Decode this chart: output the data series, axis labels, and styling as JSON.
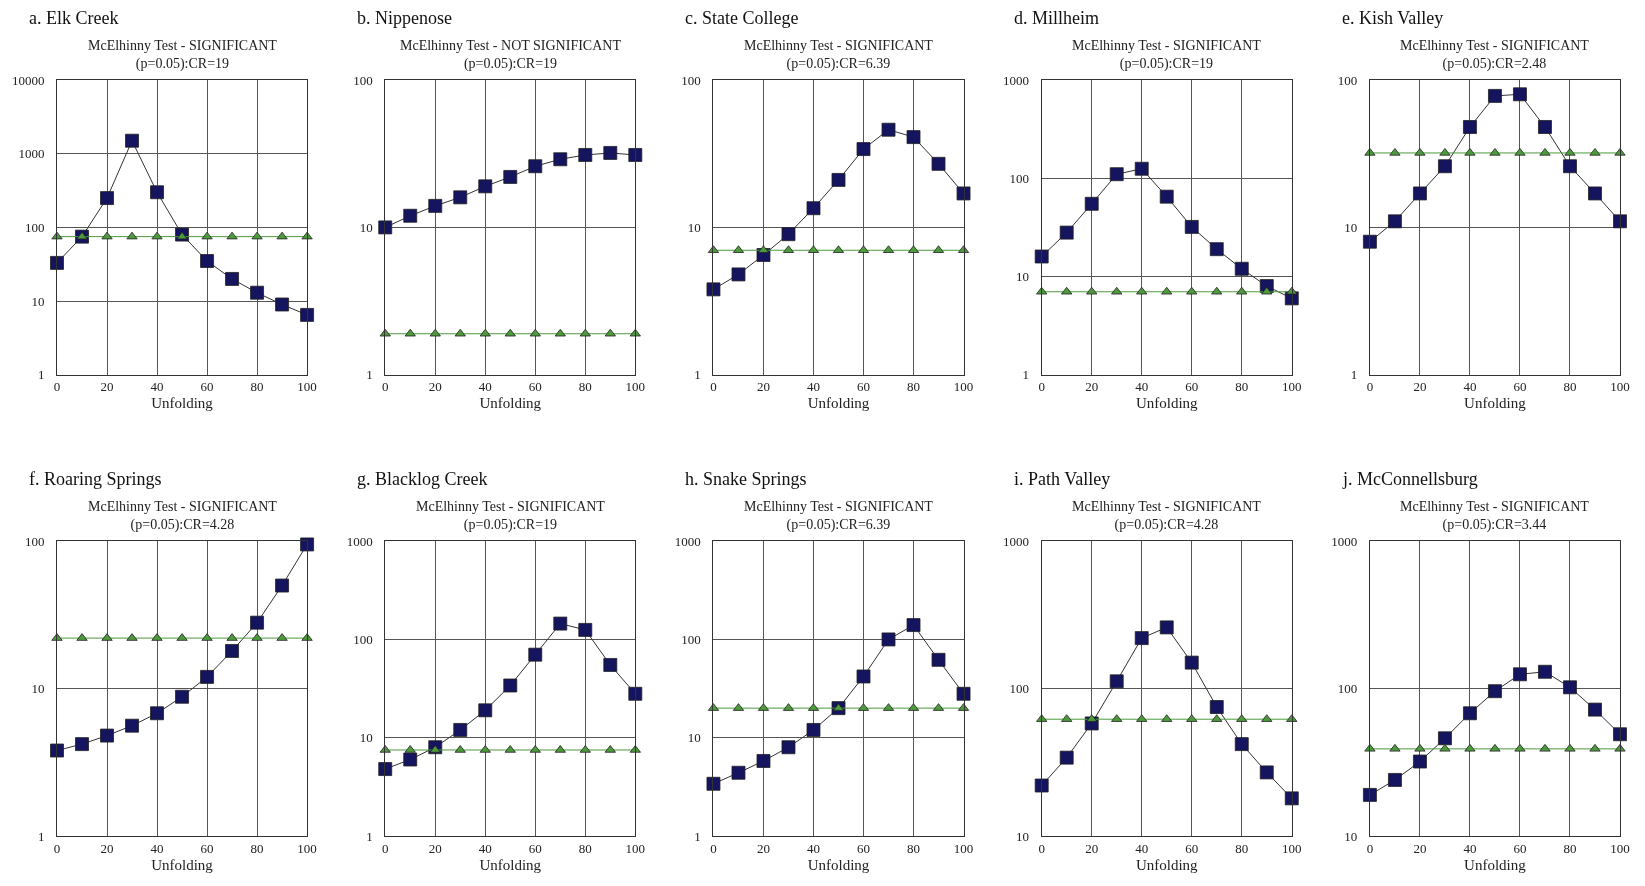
{
  "chart_data": [
    {
      "type": "line",
      "title": "a. Elk Creek",
      "subtitle": "McElhinny Test - SIGNIFICANT\n(p=0.05):CR=19",
      "xlabel": "Unfolding",
      "x": [
        0,
        10,
        20,
        30,
        40,
        50,
        60,
        70,
        80,
        90,
        100
      ],
      "log": true,
      "grid": true,
      "xlim": [
        0,
        100
      ],
      "xticks": [
        0,
        20,
        40,
        60,
        80,
        100
      ],
      "ylim": [
        1,
        10000
      ],
      "yticks": [
        1,
        10,
        100,
        1000,
        10000
      ],
      "series": [
        {
          "color": "#14145f",
          "marker": "square",
          "values": [
            33,
            75,
            250,
            1500,
            300,
            80,
            35,
            20,
            13,
            9,
            6.5
          ]
        },
        {
          "color": "#4c9a3c",
          "marker": "triangle",
          "values": [
            75,
            75,
            75,
            75,
            75,
            75,
            75,
            75,
            75,
            75,
            75
          ]
        }
      ]
    },
    {
      "type": "line",
      "title": "b. Nippenose",
      "subtitle": "McElhinny Test - NOT SIGNIFICANT\n(p=0.05):CR=19",
      "xlabel": "Unfolding",
      "x": [
        0,
        10,
        20,
        30,
        40,
        50,
        60,
        70,
        80,
        90,
        100
      ],
      "log": true,
      "grid": true,
      "xlim": [
        0,
        100
      ],
      "xticks": [
        0,
        20,
        40,
        60,
        80,
        100
      ],
      "ylim": [
        1,
        100
      ],
      "yticks": [
        1,
        10,
        100
      ],
      "series": [
        {
          "color": "#14145f",
          "marker": "square",
          "values": [
            10,
            12,
            14,
            16,
            19,
            22,
            26,
            29,
            31,
            32,
            31
          ]
        },
        {
          "color": "#4c9a3c",
          "marker": "triangle",
          "values": [
            1.9,
            1.9,
            1.9,
            1.9,
            1.9,
            1.9,
            1.9,
            1.9,
            1.9,
            1.9,
            1.9
          ]
        }
      ]
    },
    {
      "type": "line",
      "title": "c. State College",
      "subtitle": "McElhinny Test - SIGNIFICANT\n(p=0.05):CR=6.39",
      "xlabel": "Unfolding",
      "x": [
        0,
        10,
        20,
        30,
        40,
        50,
        60,
        70,
        80,
        90,
        100
      ],
      "log": true,
      "grid": true,
      "xlim": [
        0,
        100
      ],
      "xticks": [
        0,
        20,
        40,
        60,
        80,
        100
      ],
      "ylim": [
        1,
        100
      ],
      "yticks": [
        1,
        10,
        100
      ],
      "series": [
        {
          "color": "#14145f",
          "marker": "square",
          "values": [
            3.8,
            4.8,
            6.5,
            9,
            13.5,
            21,
            34,
            46,
            41,
            27,
            17
          ]
        },
        {
          "color": "#4c9a3c",
          "marker": "triangle",
          "values": [
            7,
            7,
            7,
            7,
            7,
            7,
            7,
            7,
            7,
            7,
            7
          ]
        }
      ]
    },
    {
      "type": "line",
      "title": "d. Millheim",
      "subtitle": "McElhinny Test - SIGNIFICANT\n(p=0.05):CR=19",
      "xlabel": "Unfolding",
      "x": [
        0,
        10,
        20,
        30,
        40,
        50,
        60,
        70,
        80,
        90,
        100
      ],
      "log": true,
      "grid": true,
      "xlim": [
        0,
        100
      ],
      "xticks": [
        0,
        20,
        40,
        60,
        80,
        100
      ],
      "ylim": [
        1,
        1000
      ],
      "yticks": [
        1,
        10,
        100,
        1000
      ],
      "series": [
        {
          "color": "#14145f",
          "marker": "square",
          "values": [
            16,
            28,
            55,
            110,
            125,
            65,
            32,
            19,
            12,
            8,
            6
          ]
        },
        {
          "color": "#4c9a3c",
          "marker": "triangle",
          "values": [
            7,
            7,
            7,
            7,
            7,
            7,
            7,
            7,
            7,
            7,
            7
          ]
        }
      ]
    },
    {
      "type": "line",
      "title": "e. Kish Valley",
      "subtitle": "McElhinny Test - SIGNIFICANT\n(p=0.05):CR=2.48",
      "xlabel": "Unfolding",
      "x": [
        0,
        10,
        20,
        30,
        40,
        50,
        60,
        70,
        80,
        90,
        100
      ],
      "log": true,
      "grid": true,
      "xlim": [
        0,
        100
      ],
      "xticks": [
        0,
        20,
        40,
        60,
        80,
        100
      ],
      "ylim": [
        1,
        100
      ],
      "yticks": [
        1,
        10,
        100
      ],
      "series": [
        {
          "color": "#14145f",
          "marker": "square",
          "values": [
            8,
            11,
            17,
            26,
            48,
            78,
            80,
            48,
            26,
            17,
            11
          ]
        },
        {
          "color": "#4c9a3c",
          "marker": "triangle",
          "values": [
            32,
            32,
            32,
            32,
            32,
            32,
            32,
            32,
            32,
            32,
            32
          ]
        }
      ]
    },
    {
      "type": "line",
      "title": "f. Roaring Springs",
      "subtitle": "McElhinny Test - SIGNIFICANT\n(p=0.05):CR=4.28",
      "xlabel": "Unfolding",
      "x": [
        0,
        10,
        20,
        30,
        40,
        50,
        60,
        70,
        80,
        90,
        100
      ],
      "log": true,
      "grid": true,
      "xlim": [
        0,
        100
      ],
      "xticks": [
        0,
        20,
        40,
        60,
        80,
        100
      ],
      "ylim": [
        1,
        100
      ],
      "yticks": [
        1,
        10,
        100
      ],
      "series": [
        {
          "color": "#14145f",
          "marker": "square",
          "values": [
            3.8,
            4.2,
            4.8,
            5.6,
            6.8,
            8.8,
            12,
            18,
            28,
            50,
            95
          ]
        },
        {
          "color": "#4c9a3c",
          "marker": "triangle",
          "values": [
            22,
            22,
            22,
            22,
            22,
            22,
            22,
            22,
            22,
            22,
            22
          ]
        }
      ]
    },
    {
      "type": "line",
      "title": "g. Blacklog Creek",
      "subtitle": "McElhinny Test - SIGNIFICANT\n(p=0.05):CR=19",
      "xlabel": "Unfolding",
      "x": [
        0,
        10,
        20,
        30,
        40,
        50,
        60,
        70,
        80,
        90,
        100
      ],
      "log": true,
      "grid": true,
      "xlim": [
        0,
        100
      ],
      "xticks": [
        0,
        20,
        40,
        60,
        80,
        100
      ],
      "ylim": [
        1,
        1000
      ],
      "yticks": [
        1,
        10,
        100,
        1000
      ],
      "series": [
        {
          "color": "#14145f",
          "marker": "square",
          "values": [
            4.8,
            6,
            8,
            12,
            19,
            34,
            70,
            145,
            125,
            55,
            28
          ]
        },
        {
          "color": "#4c9a3c",
          "marker": "triangle",
          "values": [
            7.5,
            7.5,
            7.5,
            7.5,
            7.5,
            7.5,
            7.5,
            7.5,
            7.5,
            7.5,
            7.5
          ]
        }
      ]
    },
    {
      "type": "line",
      "title": "h. Snake Springs",
      "subtitle": "McElhinny Test - SIGNIFICANT\n(p=0.05):CR=6.39",
      "xlabel": "Unfolding",
      "x": [
        0,
        10,
        20,
        30,
        40,
        50,
        60,
        70,
        80,
        90,
        100
      ],
      "log": true,
      "grid": true,
      "xlim": [
        0,
        100
      ],
      "xticks": [
        0,
        20,
        40,
        60,
        80,
        100
      ],
      "ylim": [
        1,
        1000
      ],
      "yticks": [
        1,
        10,
        100,
        1000
      ],
      "series": [
        {
          "color": "#14145f",
          "marker": "square",
          "values": [
            3.4,
            4.4,
            5.8,
            8,
            12,
            20,
            42,
            100,
            140,
            62,
            28
          ]
        },
        {
          "color": "#4c9a3c",
          "marker": "triangle",
          "values": [
            20,
            20,
            20,
            20,
            20,
            20,
            20,
            20,
            20,
            20,
            20
          ]
        }
      ]
    },
    {
      "type": "line",
      "title": "i. Path Valley",
      "subtitle": "McElhinny Test - SIGNIFICANT\n(p=0.05):CR=4.28",
      "xlabel": "Unfolding",
      "x": [
        0,
        10,
        20,
        30,
        40,
        50,
        60,
        70,
        80,
        90,
        100
      ],
      "log": true,
      "grid": true,
      "xlim": [
        0,
        100
      ],
      "xticks": [
        0,
        20,
        40,
        60,
        80,
        100
      ],
      "ylim": [
        10,
        1000
      ],
      "yticks": [
        10,
        100,
        1000
      ],
      "series": [
        {
          "color": "#14145f",
          "marker": "square",
          "values": [
            22,
            34,
            58,
            112,
            220,
            260,
            150,
            75,
            42,
            27,
            18
          ]
        },
        {
          "color": "#4c9a3c",
          "marker": "triangle",
          "values": [
            62,
            62,
            62,
            62,
            62,
            62,
            62,
            62,
            62,
            62,
            62
          ]
        }
      ]
    },
    {
      "type": "line",
      "title": "j. McConnellsburg",
      "subtitle": "McElhinny Test - SIGNIFICANT\n(p=0.05):CR=3.44",
      "xlabel": "Unfolding",
      "x": [
        0,
        10,
        20,
        30,
        40,
        50,
        60,
        70,
        80,
        90,
        100
      ],
      "log": true,
      "grid": true,
      "xlim": [
        0,
        100
      ],
      "xticks": [
        0,
        20,
        40,
        60,
        80,
        100
      ],
      "ylim": [
        10,
        1000
      ],
      "yticks": [
        10,
        100,
        1000
      ],
      "series": [
        {
          "color": "#14145f",
          "marker": "square",
          "values": [
            19,
            24,
            32,
            46,
            68,
            96,
            125,
            130,
            102,
            72,
            49
          ]
        },
        {
          "color": "#4c9a3c",
          "marker": "triangle",
          "values": [
            39,
            39,
            39,
            39,
            39,
            39,
            39,
            39,
            39,
            39,
            39
          ]
        }
      ]
    }
  ]
}
